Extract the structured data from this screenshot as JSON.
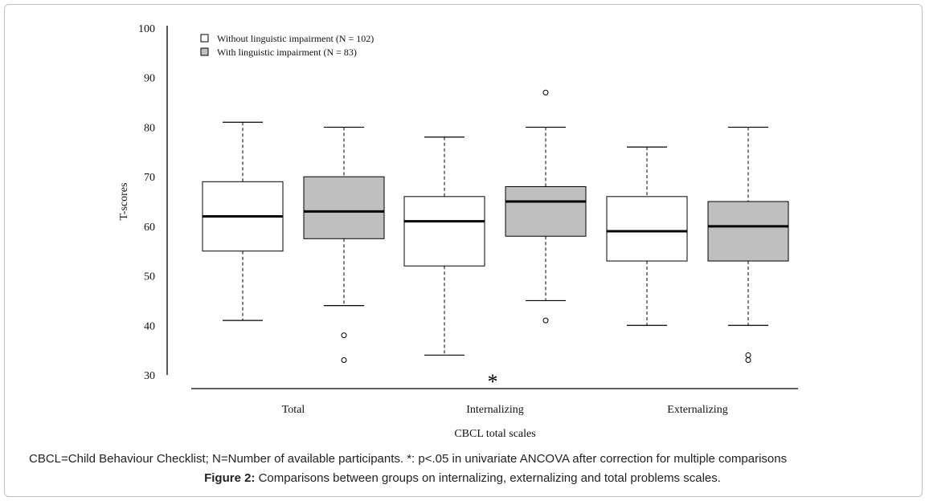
{
  "chart_data": {
    "type": "box",
    "title": "",
    "xlabel": "CBCL total scales",
    "ylabel": "T-scores",
    "ylim": [
      30,
      100
    ],
    "yticks": [
      30,
      40,
      50,
      60,
      70,
      80,
      90,
      100
    ],
    "categories": [
      "Total",
      "Internalizing",
      "Externalizing"
    ],
    "grid": false,
    "legend_position": "top-left",
    "series": [
      {
        "name": "Without linguistic impairment (N = 102)",
        "color": "#ffffff",
        "boxes": [
          {
            "whisker_low": 41,
            "q1": 55,
            "median": 62,
            "q3": 69,
            "whisker_high": 81,
            "outliers": []
          },
          {
            "whisker_low": 34,
            "q1": 52,
            "median": 61,
            "q3": 66,
            "whisker_high": 78,
            "outliers": []
          },
          {
            "whisker_low": 40,
            "q1": 53,
            "median": 59,
            "q3": 66,
            "whisker_high": 76,
            "outliers": []
          }
        ]
      },
      {
        "name": "With linguistic impairment (N = 83)",
        "color": "#bfbfbf",
        "boxes": [
          {
            "whisker_low": 44,
            "q1": 57.5,
            "median": 63,
            "q3": 70,
            "whisker_high": 80,
            "outliers": [
              38,
              33
            ]
          },
          {
            "whisker_low": 45,
            "q1": 58,
            "median": 65,
            "q3": 68,
            "whisker_high": 80,
            "outliers": [
              87,
              41
            ]
          },
          {
            "whisker_low": 40,
            "q1": 53,
            "median": 60,
            "q3": 65,
            "whisker_high": 80,
            "outliers": [
              34,
              33
            ]
          }
        ]
      }
    ],
    "annotations": [
      {
        "text": "*",
        "category": "Internalizing"
      }
    ]
  },
  "footnote": "CBCL=Child Behaviour Checklist; N=Number of available participants. *: p<.05 in univariate ANCOVA after correction for multiple comparisons",
  "figure_caption": {
    "label": "Figure 2:",
    "text": "Comparisons between groups on internalizing, externalizing and total problems scales."
  }
}
